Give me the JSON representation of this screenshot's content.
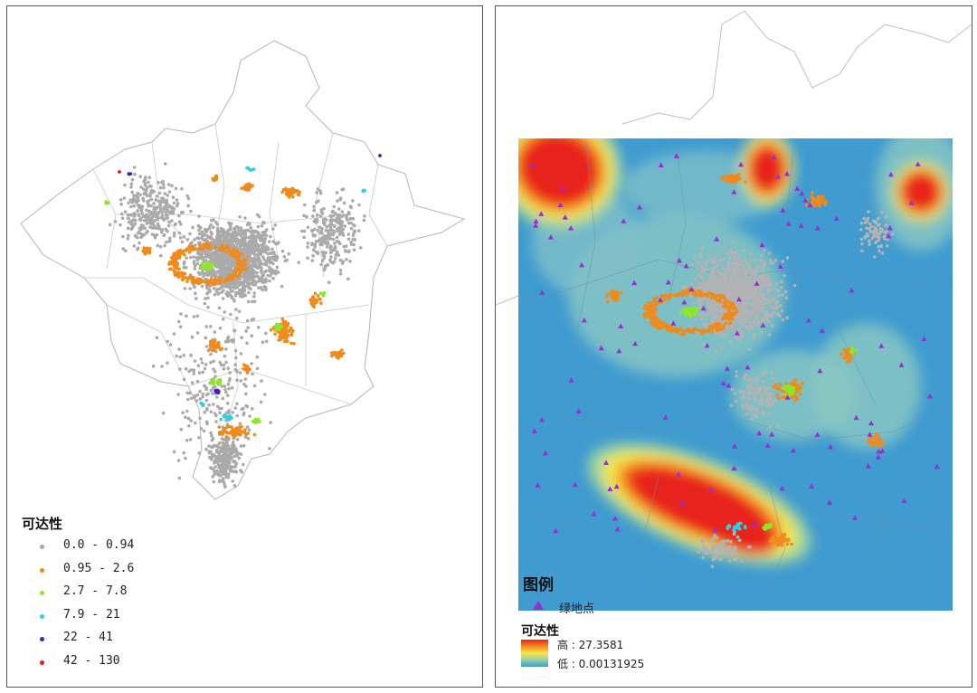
{
  "left_map": {
    "legend": {
      "title": "可达性",
      "classes": [
        {
          "label": "0.0 - 0.94",
          "color": "#aaaaaa"
        },
        {
          "label": "0.95 - 2.6",
          "color": "#f08a1a"
        },
        {
          "label": "2.7 - 7.8",
          "color": "#8ee52a"
        },
        {
          "label": "7.9 - 21",
          "color": "#2ad0e5"
        },
        {
          "label": "22 - 41",
          "color": "#4a1ac8"
        },
        {
          "label": "42 - 130",
          "color": "#e51a1a"
        }
      ]
    }
  },
  "right_map": {
    "legend": {
      "title": "图例",
      "green_point_label": "绿地点",
      "green_point_color": "#9b2bd6",
      "surface_title": "可达性",
      "high_label": "高 : 27.3581",
      "low_label": "低 : 0.00131925"
    }
  }
}
